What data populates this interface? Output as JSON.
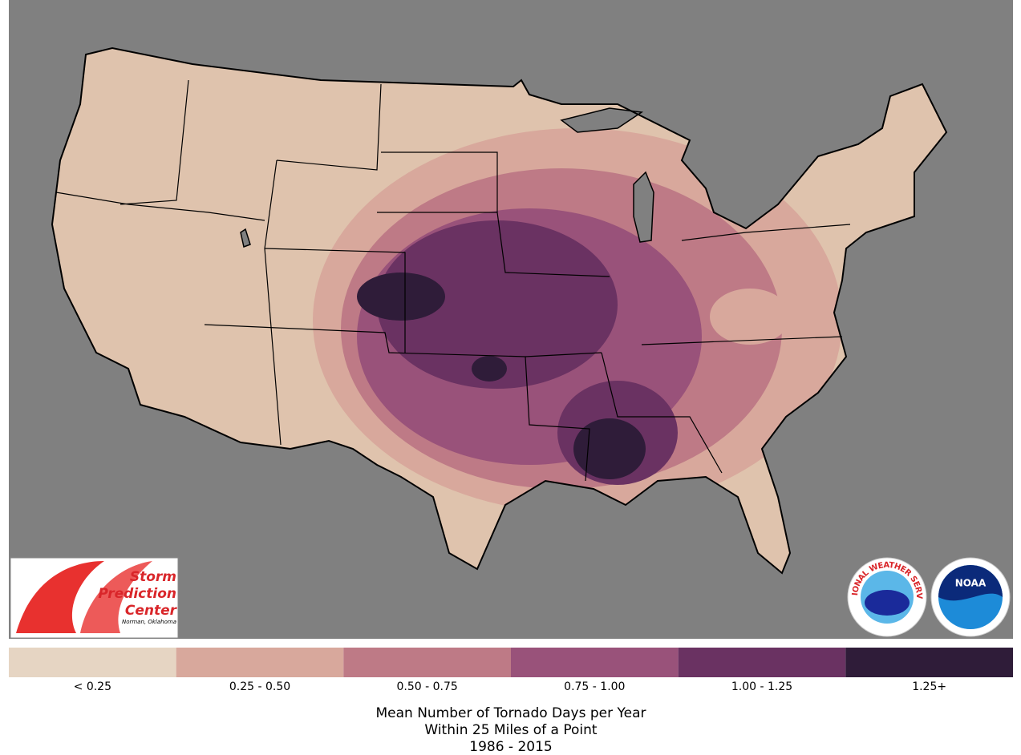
{
  "title_lines": [
    "Mean Number of Tornado Days per Year",
    "Within 25 Miles of a Point",
    "1986 - 2015"
  ],
  "legend": [
    {
      "label": "< 0.25",
      "color": "#e6d5c3"
    },
    {
      "label": "0.25 - 0.50",
      "color": "#d8a89c"
    },
    {
      "label": "0.50 - 0.75",
      "color": "#be7a86"
    },
    {
      "label": "0.75 - 1.00",
      "color": "#99527a"
    },
    {
      "label": "1.00 - 1.25",
      "color": "#6a3262"
    },
    {
      "label": "1.25+",
      "color": "#2f1c39"
    }
  ],
  "logos": {
    "spc": [
      "Storm",
      "Prediction",
      "Center"
    ],
    "spc_location": "Norman, Oklahoma",
    "nws": "NATIONAL WEATHER SERVICE",
    "noaa": "NOAA"
  }
}
